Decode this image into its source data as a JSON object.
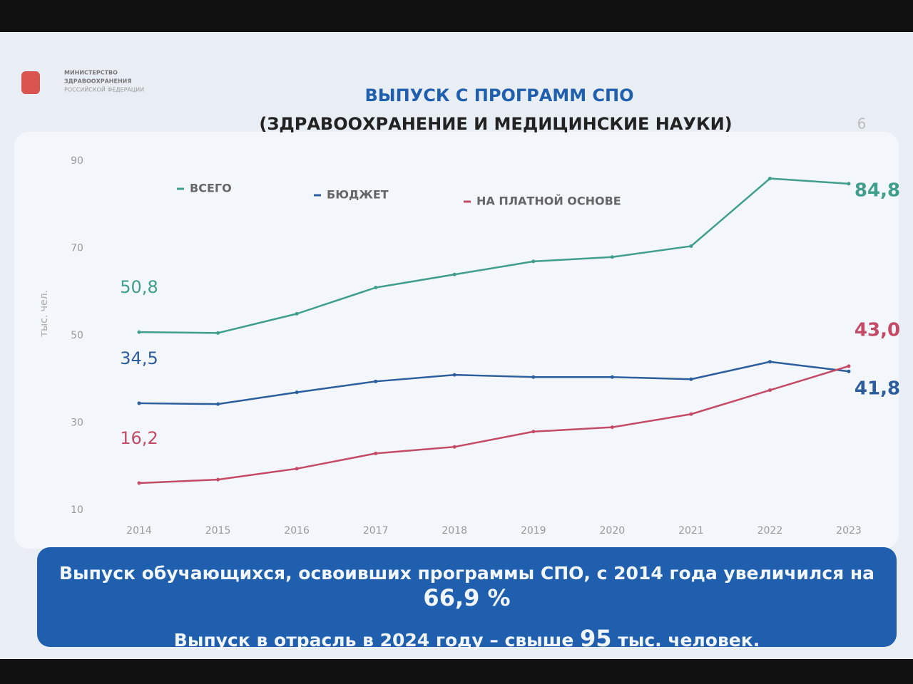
{
  "header": {
    "ministry": [
      "МИНИСТЕРСТВО",
      "ЗДРАВООХРАНЕНИЯ",
      "РОССИЙСКОЙ ФЕДЕРАЦИИ"
    ],
    "page_number": "6"
  },
  "chart_data": {
    "type": "line",
    "title": "ВЫПУСК С ПРОГРАММ СПО",
    "subtitle": "(ЗДРАВООХРАНЕНИЕ И МЕДИЦИНСКИЕ НАУКИ)",
    "y_label": "тыс. чел.",
    "categories": [
      "2014",
      "2015",
      "2016",
      "2017",
      "2018",
      "2019",
      "2020",
      "2021",
      "2022",
      "2023"
    ],
    "ylim": [
      10,
      90
    ],
    "yticks": [
      10,
      30,
      50,
      70,
      90
    ],
    "grid": false,
    "legend": "top",
    "series": [
      {
        "name": "ВСЕГО",
        "color": "#3f9e8c",
        "values": [
          50.8,
          50.6,
          55,
          61,
          64,
          67,
          68,
          70.5,
          86,
          84.8
        ],
        "value_labels": [
          "50,8",
          null,
          null,
          null,
          null,
          null,
          null,
          null,
          null,
          "84,8"
        ]
      },
      {
        "name": "БЮДЖЕТ",
        "color": "#2c5d9c",
        "values": [
          34.5,
          34.3,
          37,
          39.5,
          41,
          40.5,
          40.5,
          40,
          44,
          41.8
        ],
        "value_labels": [
          "34,5",
          null,
          null,
          null,
          null,
          null,
          null,
          null,
          null,
          "41,8"
        ]
      },
      {
        "name": "НА ПЛАТНОЙ ОСНОВЕ",
        "color": "#c44a66",
        "values": [
          16.2,
          17,
          19.5,
          23,
          24.5,
          28,
          29,
          32,
          37.5,
          43.0
        ],
        "value_labels": [
          "16,2",
          null,
          null,
          null,
          null,
          null,
          null,
          null,
          null,
          "43,0"
        ]
      }
    ]
  },
  "footer": {
    "lines": [
      [
        "Выпуск обучающихся, освоивших программы СПО, с 2014 года ",
        "увеличился на ",
        "66,9 %"
      ],
      [
        "Выпуск в отрасль в 2024 году – ",
        "свыше ",
        "95",
        " тыс. человек."
      ]
    ]
  }
}
